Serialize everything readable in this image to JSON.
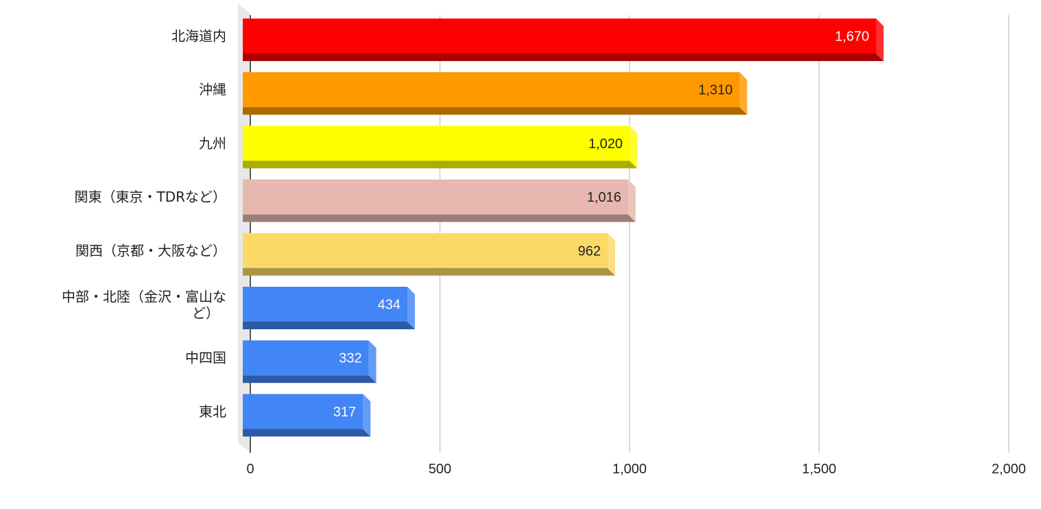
{
  "chart_data": {
    "type": "bar",
    "orientation": "horizontal",
    "style": "3d",
    "categories": [
      "北海道内",
      "沖縄",
      "九州",
      "関東（東京・TDRなど）",
      "関西（京都・大阪など）",
      "中部・北陸（金沢・富山など）",
      "中四国",
      "東北"
    ],
    "values": [
      1670,
      1310,
      1020,
      1016,
      962,
      434,
      332,
      317
    ],
    "value_labels": [
      "1,670",
      "1,310",
      "1,020",
      "1,016",
      "962",
      "434",
      "332",
      "317"
    ],
    "bar_colors": [
      "#ff0000",
      "#ff9900",
      "#ffff00",
      "#e6b8af",
      "#fcd966",
      "#4285f4",
      "#4285f4",
      "#4285f4"
    ],
    "value_label_colors": [
      "#ffffff",
      "#222222",
      "#222222",
      "#222222",
      "#222222",
      "#ffffff",
      "#ffffff",
      "#ffffff"
    ],
    "x_ticks": [
      0,
      500,
      1000,
      1500,
      2000
    ],
    "x_tick_labels": [
      "0",
      "500",
      "1,000",
      "1,500",
      "2,000"
    ],
    "xlim": [
      0,
      2000
    ],
    "grid": "vertical",
    "legend": "none",
    "title": "",
    "xlabel": "",
    "ylabel": ""
  }
}
